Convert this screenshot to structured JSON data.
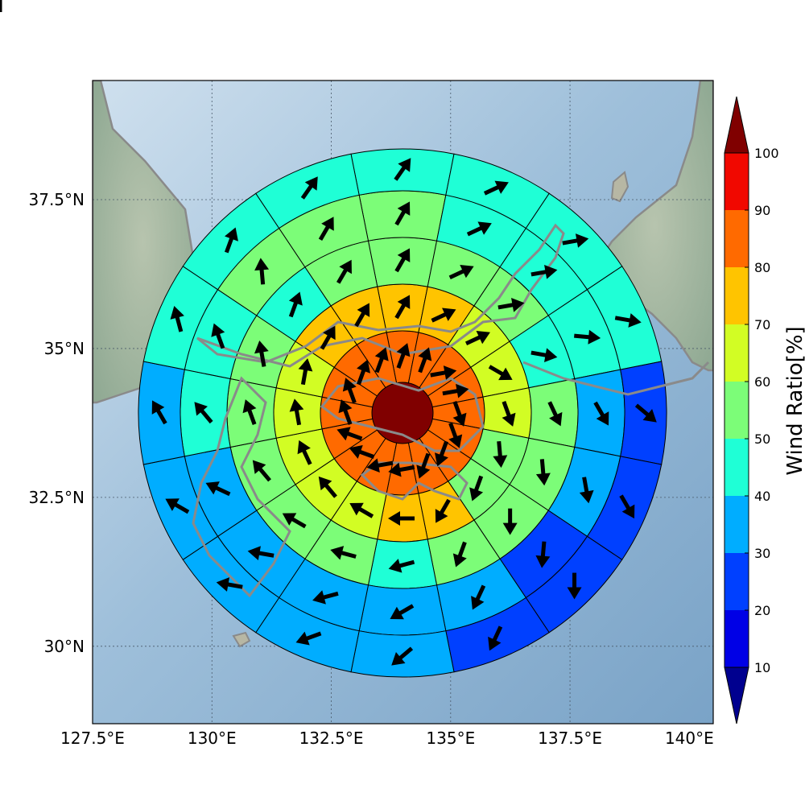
{
  "chart_data": {
    "type": "heatmap",
    "subtype": "polar wind-ratio map with direction arrows",
    "x_ticks": [
      "127.5°E",
      "130°E",
      "132.5°E",
      "135°E",
      "137.5°E",
      "140°E"
    ],
    "x_tick_values": [
      127.5,
      130,
      132.5,
      135,
      137.5,
      140
    ],
    "y_ticks": [
      "30°N",
      "32.5°N",
      "35°N",
      "37.5°N"
    ],
    "y_tick_values": [
      30,
      32.5,
      35,
      37.5
    ],
    "xlim": [
      127.5,
      140.5
    ],
    "ylim": [
      28.7,
      39.5
    ],
    "grid": true,
    "center_value": 100,
    "colorbar": {
      "label": "Wind Ratio[%]",
      "ticks": [
        "10",
        "20",
        "30",
        "40",
        "50",
        "60",
        "70",
        "80",
        "90",
        "100"
      ],
      "levels": [
        0,
        10,
        20,
        30,
        40,
        50,
        60,
        70,
        80,
        90,
        100
      ],
      "colors": [
        "#00008f",
        "#0000e6",
        "#0040ff",
        "#00adff",
        "#1fffd6",
        "#7cfd78",
        "#d2fd24",
        "#ffc400",
        "#ff6a00",
        "#f10800",
        "#800000"
      ],
      "extend": "both",
      "placement": "right"
    },
    "sectors_clockwise_from_north": 16,
    "rings": [
      {
        "ring": 1,
        "values": [
          85,
          85,
          85,
          85,
          85,
          85,
          85,
          85,
          85,
          85,
          85,
          85,
          85,
          85,
          85,
          85
        ],
        "arrow_directions_deg": [
          20,
          20,
          80,
          80,
          160,
          160,
          200,
          200,
          260,
          260,
          290,
          290,
          340,
          340,
          20,
          20
        ]
      },
      {
        "ring": 2,
        "values": [
          75,
          75,
          65,
          65,
          65,
          55,
          55,
          75,
          75,
          65,
          65,
          65,
          65,
          65,
          75,
          75
        ],
        "arrow_directions_deg": [
          30,
          65,
          65,
          120,
          160,
          175,
          200,
          210,
          270,
          300,
          320,
          335,
          350,
          10,
          30,
          30
        ]
      },
      {
        "ring": 3,
        "values": [
          55,
          55,
          55,
          45,
          55,
          55,
          55,
          55,
          45,
          55,
          55,
          55,
          55,
          55,
          45,
          55
        ],
        "arrow_directions_deg": [
          30,
          65,
          80,
          100,
          155,
          175,
          180,
          200,
          255,
          285,
          300,
          320,
          340,
          350,
          20,
          30
        ]
      },
      {
        "ring": 4,
        "values": [
          55,
          45,
          45,
          45,
          35,
          35,
          25,
          35,
          35,
          35,
          35,
          35,
          45,
          45,
          55,
          55
        ],
        "arrow_directions_deg": [
          30,
          65,
          80,
          95,
          150,
          170,
          185,
          205,
          240,
          255,
          280,
          295,
          320,
          340,
          355,
          30
        ]
      },
      {
        "ring": 5,
        "values": [
          45,
          45,
          45,
          45,
          25,
          25,
          25,
          25,
          35,
          35,
          35,
          35,
          35,
          45,
          45,
          45
        ],
        "arrow_directions_deg": [
          35,
          65,
          80,
          100,
          130,
          150,
          180,
          205,
          230,
          250,
          280,
          300,
          330,
          345,
          20,
          35
        ]
      },
      {
        "ring": 6,
        "values": [
          45,
          45,
          45,
          35,
          25,
          15,
          15,
          25,
          25,
          35,
          35,
          25,
          35,
          35,
          55,
          35
        ],
        "arrow_directions_deg": [
          40,
          65,
          75,
          95,
          120,
          155,
          190,
          210,
          240,
          265,
          290,
          300,
          325,
          345,
          355,
          30
        ]
      }
    ]
  }
}
